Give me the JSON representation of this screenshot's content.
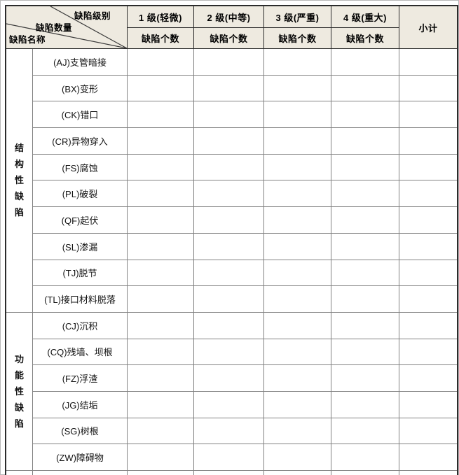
{
  "table": {
    "corner": {
      "level_label": "缺陷级别",
      "count_label": "缺陷数量",
      "name_label": "缺陷名称"
    },
    "level_headers": [
      "1 级(轻微)",
      "2 级(中等)",
      "3 级(严重)",
      "4 级(重大)"
    ],
    "count_header": "缺陷个数",
    "subtotal_header": "小计",
    "sections": [
      {
        "group": "结构性缺陷",
        "rows": [
          "(AJ)支管暗接",
          "(BX)变形",
          "(CK)错口",
          "(CR)异物穿入",
          "(FS)腐蚀",
          "(PL)破裂",
          "(QF)起伏",
          "(SL)渗漏",
          "(TJ)脱节",
          "(TL)接口材料脱落"
        ]
      },
      {
        "group": "功能性缺陷",
        "rows": [
          "(CJ)沉积",
          "(CQ)残墙、坝根",
          "(FZ)浮渣",
          "(JG)结垢",
          "(SG)树根",
          "(ZW)障碍物"
        ]
      }
    ],
    "colors": {
      "header_bg": "#eeeae0",
      "grid_line": "#828282",
      "frame_line": "#2b2b2b"
    }
  }
}
